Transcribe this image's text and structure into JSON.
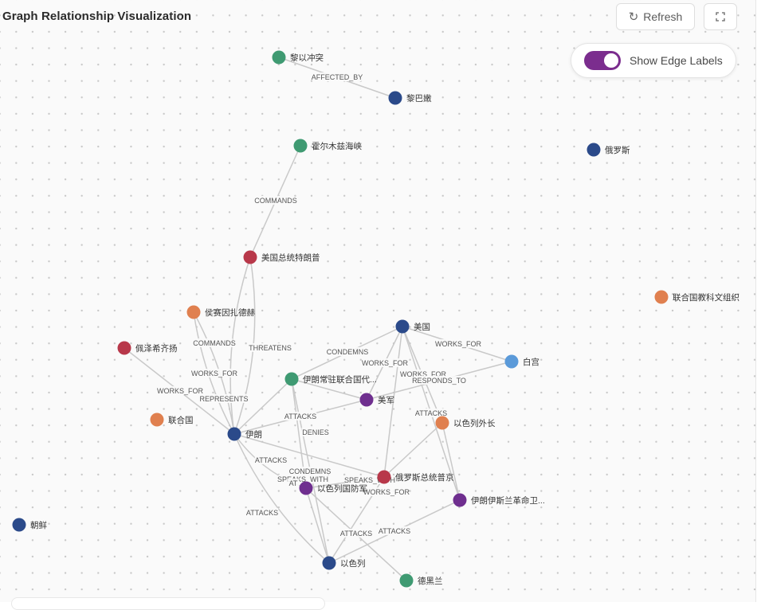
{
  "header": {
    "title": "Graph Relationship Visualization",
    "refresh_label": "Refresh",
    "refresh_icon": "refresh-icon",
    "fullscreen_icon": "fullscreen-icon"
  },
  "toggle": {
    "label": "Show Edge Labels",
    "on": true,
    "accent_color": "#7b2d8e"
  },
  "colors": {
    "navy": "#2b4a8a",
    "green": "#3f9a72",
    "red": "#b8384a",
    "orange": "#e0804f",
    "purple": "#6f2f8f",
    "lightblue": "#5b9ad9"
  },
  "nodes": [
    {
      "id": "n1",
      "label": "黎以冲突",
      "color": "green"
    },
    {
      "id": "n2",
      "label": "黎巴嫩",
      "color": "navy"
    },
    {
      "id": "n3",
      "label": "霍尔木兹海峡",
      "color": "green"
    },
    {
      "id": "n4",
      "label": "俄罗斯",
      "color": "navy"
    },
    {
      "id": "n5",
      "label": "美国总统特朗普",
      "color": "red"
    },
    {
      "id": "n6",
      "label": "联合国教科文组织",
      "color": "orange"
    },
    {
      "id": "n7",
      "label": "侯赛因扎德赫",
      "color": "orange"
    },
    {
      "id": "n8",
      "label": "美国",
      "color": "navy"
    },
    {
      "id": "n9",
      "label": "佩泽希齐扬",
      "color": "red"
    },
    {
      "id": "n10",
      "label": "白宫",
      "color": "lightblue"
    },
    {
      "id": "n11",
      "label": "伊朗常驻联合国代...",
      "color": "green"
    },
    {
      "id": "n12",
      "label": "美军",
      "color": "purple"
    },
    {
      "id": "n13",
      "label": "联合国",
      "color": "orange"
    },
    {
      "id": "n14",
      "label": "以色列外长",
      "color": "orange"
    },
    {
      "id": "n15",
      "label": "伊朗",
      "color": "navy"
    },
    {
      "id": "n16",
      "label": "俄罗斯总统普京",
      "color": "red"
    },
    {
      "id": "n17",
      "label": "以色列国防军",
      "color": "purple"
    },
    {
      "id": "n18",
      "label": "伊朗伊斯兰革命卫...",
      "color": "purple"
    },
    {
      "id": "n19",
      "label": "朝鲜",
      "color": "navy"
    },
    {
      "id": "n20",
      "label": "以色列",
      "color": "navy"
    },
    {
      "id": "n21",
      "label": "德黑兰",
      "color": "green"
    }
  ],
  "edges": [
    {
      "from": "n1",
      "to": "n2",
      "label": "AFFECTED_BY"
    },
    {
      "from": "n3",
      "to": "n5",
      "label": "COMMANDS"
    },
    {
      "from": "n5",
      "to": "n15",
      "label": "THREATENS"
    },
    {
      "from": "n5",
      "to": "n15",
      "label": ""
    },
    {
      "from": "n7",
      "to": "n15",
      "label": "COMMANDS"
    },
    {
      "from": "n7",
      "to": "n15",
      "label": "WORKS_FOR"
    },
    {
      "from": "n9",
      "to": "n15",
      "label": "WORKS_FOR"
    },
    {
      "from": "n11",
      "to": "n15",
      "label": "REPRESENTS"
    },
    {
      "from": "n8",
      "to": "n11",
      "label": "CONDEMNS"
    },
    {
      "from": "n8",
      "to": "n10",
      "label": "WORKS_FOR"
    },
    {
      "from": "n8",
      "to": "n12",
      "label": "WORKS_FOR"
    },
    {
      "from": "n8",
      "to": "n14",
      "label": "WORKS_FOR"
    },
    {
      "from": "n10",
      "to": "n12",
      "label": "RESPONDS_TO"
    },
    {
      "from": "n8",
      "to": "n16",
      "label": ""
    },
    {
      "from": "n8",
      "to": "n18",
      "label": "ATTACKS"
    },
    {
      "from": "n12",
      "to": "n15",
      "label": "ATTACKS"
    },
    {
      "from": "n11",
      "to": "n12",
      "label": "SPEAKS_WITH"
    },
    {
      "from": "n15",
      "to": "n16",
      "label": "DENIES"
    },
    {
      "from": "n15",
      "to": "n17",
      "label": "ATTACKS"
    },
    {
      "from": "n15",
      "to": "n20",
      "label": "ATTACKS"
    },
    {
      "from": "n11",
      "to": "n17",
      "label": "CONDEMNS"
    },
    {
      "from": "n11",
      "to": "n20",
      "label": "AT"
    },
    {
      "from": "n17",
      "to": "n16",
      "label": "SPEAKS_WITH"
    },
    {
      "from": "n14",
      "to": "n16",
      "label": "WORKS_FOR"
    },
    {
      "from": "n14",
      "to": "n18",
      "label": ""
    },
    {
      "from": "n17",
      "to": "n21",
      "label": "ATTACKS"
    },
    {
      "from": "n18",
      "to": "n20",
      "label": "ATTACKS"
    },
    {
      "from": "n16",
      "to": "n20",
      "label": ""
    },
    {
      "from": "n17",
      "to": "n20",
      "label": ""
    }
  ]
}
